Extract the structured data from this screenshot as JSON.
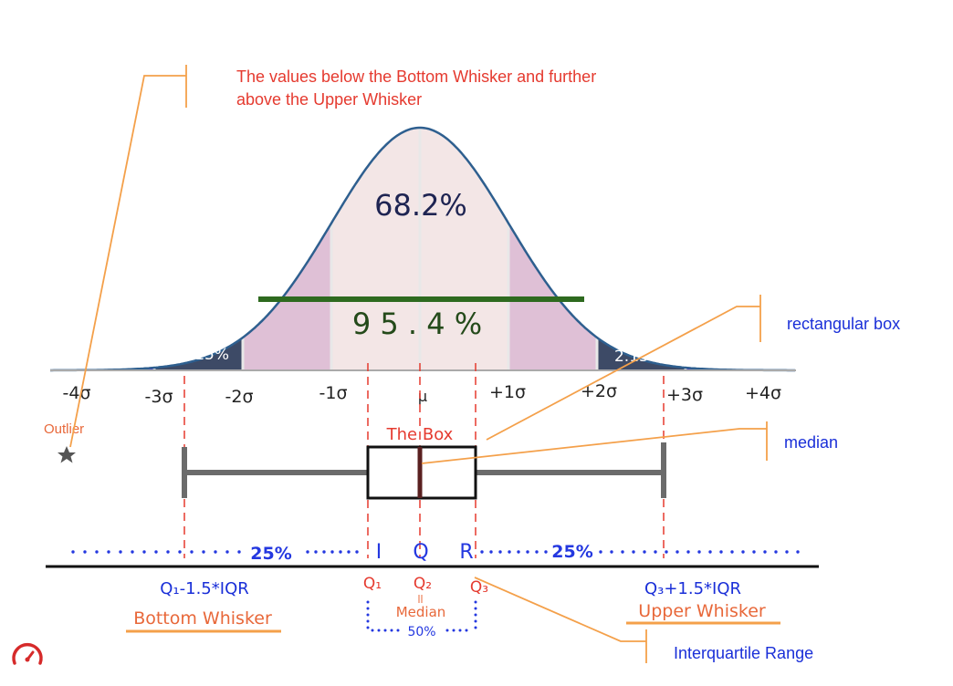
{
  "colors": {
    "curve": "#2e5f8f",
    "center_fill": "#f3e6e6",
    "mid_fill": "#dfc0d6",
    "outer_fill": "#3d4a66",
    "tail_fill": "#5b2ee0",
    "band_green": "#2e6a1f",
    "annotation_red": "#e53a2f",
    "annotation_orange": "#f4a04a",
    "annotation_blue": "#1a2fd8",
    "boxplot_gray": "#6b6b6b",
    "dark_red": "#5a2020"
  },
  "outlier_note": {
    "line1": "The values below the Bottom Whisker and further",
    "line2": "above the Upper Whisker"
  },
  "percent_labels": {
    "center": "68.2%",
    "band": "9 5 . 4 %",
    "left_tail": "2.15%",
    "right_tail": "2.15%"
  },
  "axis_ticks": [
    "-4σ",
    "-3σ",
    "-2σ",
    "-1σ",
    "μ",
    "+1σ",
    "+2σ",
    "+3σ",
    "+4σ"
  ],
  "labels": {
    "outlier": "Outlier",
    "the_box": "The Box",
    "rectangular_box": "rectangular box",
    "median": "median",
    "interquartile_range": "Interquartile Range",
    "left_quarter": "25%",
    "right_quarter": "25%",
    "iqr_i": "I",
    "iqr_q": "Q",
    "iqr_r": "R",
    "q1_minus": "Q₁-1.5*IQR",
    "bottom_whisker": "Bottom Whisker",
    "q1": "Q₁",
    "q2": "Q₂",
    "q3": "Q₃",
    "median_small": "Median",
    "fifty": "50%",
    "q3_plus": "Q₃+1.5*IQR",
    "upper_whisker": "Upper Whisker"
  },
  "icons": {
    "outlier_marker": "star-icon",
    "corner_logo": "speedometer-icon"
  }
}
